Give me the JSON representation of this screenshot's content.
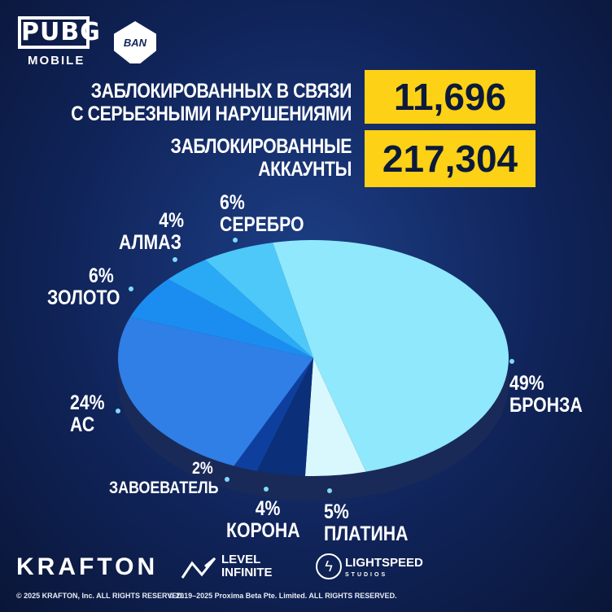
{
  "header": {
    "brand": "PUBG",
    "brand_sub": "MOBILE",
    "ban_badge": "BAN"
  },
  "stats": [
    {
      "label_line1": "ЗАБЛОКИРОВАННЫХ В СВЯЗИ",
      "label_line2": "С СЕРЬЕЗНЫМИ НАРУШЕНИЯМИ",
      "value": "11,696"
    },
    {
      "label_line1": "ЗАБЛОКИРОВАННЫЕ",
      "label_line2": "АККАУНТЫ",
      "value": "217,304"
    }
  ],
  "chart_data": {
    "type": "pie",
    "style": "3d",
    "categories": [
      "БРОНЗА",
      "ПЛАТИНА",
      "КОРОНА",
      "ЗАВОЕВАТЕЛЬ",
      "АС",
      "ЗОЛОТО",
      "АЛМАЗ",
      "СЕРЕБРО"
    ],
    "values": [
      49,
      5,
      4,
      2,
      24,
      6,
      4,
      6
    ],
    "labels": [
      "49%",
      "5%",
      "4%",
      "2%",
      "24%",
      "6%",
      "4%",
      "6%"
    ],
    "colors": [
      "#8fe8fb",
      "#d9f8fd",
      "#0b2f78",
      "#0f3f9e",
      "#2f7fe6",
      "#1b8df0",
      "#2aa9f5",
      "#4ec8f8"
    ],
    "side_color": "#1a2a58"
  },
  "footer": {
    "logos": [
      "KRAFTON",
      "LEVEL",
      "INFINITE",
      "LIGHTSPEED",
      "STUDIOS"
    ],
    "copyright1": "© 2025 KRAFTON, Inc. ALL RIGHTS RESERVED.",
    "copyright2": "© 2019–2025 Proxima Beta Pte. Limited. ALL RIGHTS RESERVED."
  }
}
